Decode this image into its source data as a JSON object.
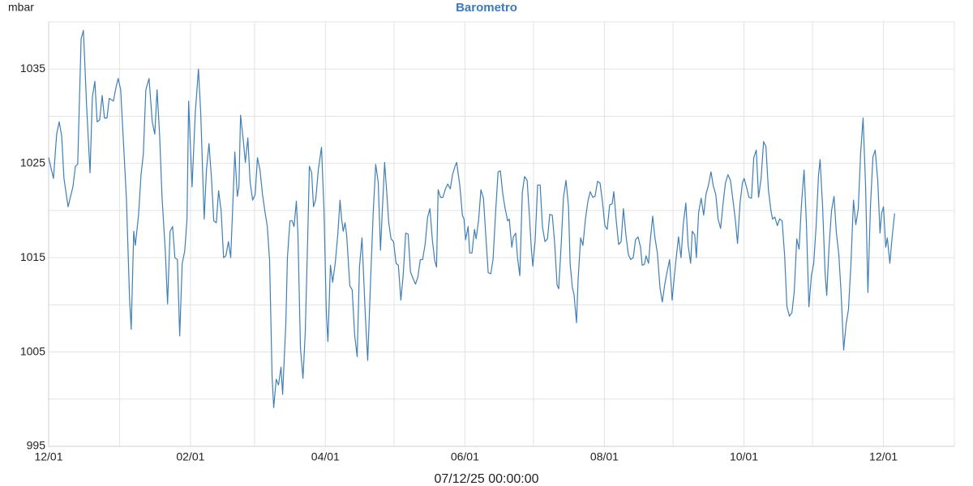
{
  "chart_data": {
    "type": "line",
    "title": "Barometro",
    "y_label": "mbar",
    "x_label": "07/12/25 00:00:00",
    "xlim": [
      0,
      396
    ],
    "ylim": [
      995,
      1040
    ],
    "xticks": [
      {
        "value": 0,
        "label": "12/01"
      },
      {
        "value": 62,
        "label": "02/01"
      },
      {
        "value": 121,
        "label": "04/01"
      },
      {
        "value": 182,
        "label": "06/01"
      },
      {
        "value": 243,
        "label": "08/01"
      },
      {
        "value": 304,
        "label": "10/01"
      },
      {
        "value": 365,
        "label": "12/01"
      }
    ],
    "x_minor_ticks": [
      31,
      90,
      151,
      212,
      273,
      334,
      396
    ],
    "yticks": [
      995,
      1005,
      1015,
      1025,
      1035
    ],
    "y_minor_ticks": [
      1000,
      1010,
      1020,
      1030,
      1040
    ],
    "grid": true,
    "x": [
      0.0,
      2.1,
      3.5,
      4.6,
      5.7,
      6.7,
      8.5,
      10.6,
      11.7,
      12.7,
      14.2,
      15.2,
      16.6,
      18.1,
      19.1,
      20.2,
      21.2,
      22.3,
      23.4,
      24.4,
      25.5,
      26.5,
      28.3,
      29.4,
      30.4,
      31.5,
      32.6,
      34.0,
      35.4,
      36.1,
      37.2,
      37.9,
      39.3,
      40.4,
      41.4,
      42.5,
      43.9,
      45.3,
      46.4,
      47.4,
      48.5,
      49.6,
      51.0,
      52.0,
      53.1,
      54.2,
      55.2,
      56.3,
      57.3,
      58.4,
      59.5,
      60.5,
      61.2,
      62.7,
      64.1,
      65.5,
      66.5,
      68.0,
      69.0,
      70.1,
      71.2,
      72.2,
      73.3,
      74.3,
      75.4,
      76.5,
      77.5,
      78.6,
      79.6,
      80.7,
      81.4,
      82.5,
      83.2,
      83.9,
      85.0,
      86.0,
      87.1,
      88.1,
      89.2,
      90.3,
      91.3,
      92.4,
      93.5,
      94.5,
      95.6,
      96.6,
      97.7,
      98.4,
      99.5,
      100.5,
      101.6,
      102.3,
      103.7,
      104.4,
      105.5,
      106.5,
      107.3,
      108.3,
      109.0,
      110.1,
      111.2,
      112.2,
      113.3,
      114.0,
      115.0,
      115.8,
      116.8,
      117.9,
      119.3,
      120.4,
      121.4,
      122.1,
      123.2,
      124.2,
      125.3,
      126.4,
      127.4,
      128.1,
      128.8,
      129.6,
      130.3,
      131.7,
      132.7,
      133.8,
      134.9,
      135.9,
      137.0,
      138.4,
      139.5,
      140.9,
      141.9,
      143.0,
      144.1,
      145.1,
      145.8,
      146.9,
      148.0,
      148.7,
      149.7,
      150.8,
      151.9,
      152.9,
      154.0,
      155.0,
      156.1,
      157.2,
      158.2,
      159.3,
      160.4,
      161.4,
      162.5,
      163.5,
      164.6,
      165.7,
      166.7,
      167.8,
      168.8,
      169.6,
      170.3,
      171.3,
      172.4,
      173.5,
      174.5,
      175.6,
      176.6,
      177.7,
      178.4,
      179.8,
      180.9,
      181.6,
      182.3,
      183.4,
      184.1,
      185.1,
      186.2,
      186.9,
      188.0,
      189.0,
      190.1,
      191.2,
      192.2,
      193.3,
      194.3,
      195.4,
      196.5,
      197.5,
      198.6,
      199.6,
      200.7,
      201.4,
      202.5,
      203.2,
      204.2,
      205.0,
      206.0,
      207.1,
      208.1,
      209.2,
      210.3,
      211.0,
      211.7,
      212.7,
      213.8,
      214.9,
      215.9,
      217.0,
      218.1,
      219.1,
      220.2,
      221.2,
      222.3,
      223.0,
      224.1,
      225.1,
      226.2,
      227.3,
      228.0,
      229.0,
      229.7,
      230.8,
      231.5,
      232.6,
      233.6,
      234.7,
      235.8,
      236.8,
      237.9,
      238.9,
      240.0,
      241.1,
      242.1,
      243.2,
      244.2,
      245.3,
      246.4,
      247.1,
      248.1,
      249.2,
      250.3,
      251.3,
      252.4,
      253.5,
      254.5,
      255.6,
      256.6,
      257.7,
      258.8,
      259.5,
      260.5,
      261.2,
      262.3,
      263.0,
      264.1,
      265.1,
      266.2,
      267.3,
      268.3,
      269.4,
      270.4,
      271.5,
      272.6,
      273.6,
      274.3,
      275.4,
      276.5,
      277.5,
      278.6,
      279.6,
      280.7,
      281.4,
      282.5,
      283.2,
      284.2,
      285.3,
      286.4,
      287.4,
      288.5,
      289.6,
      290.6,
      291.7,
      292.7,
      293.8,
      294.9,
      295.9,
      297.0,
      298.1,
      299.1,
      300.2,
      301.2,
      302.3,
      303.4,
      304.1,
      305.1,
      306.2,
      307.3,
      308.3,
      309.4,
      310.4,
      311.5,
      312.6,
      313.6,
      314.7,
      315.8,
      316.5,
      317.5,
      318.6,
      319.6,
      320.7,
      321.8,
      322.8,
      323.9,
      325.0,
      326.0,
      327.1,
      328.1,
      329.2,
      330.3,
      331.3,
      332.4,
      333.5,
      334.5,
      335.6,
      336.6,
      337.3,
      338.4,
      339.5,
      340.2,
      341.2,
      342.3,
      343.4,
      344.4,
      345.5,
      346.5,
      347.6,
      348.7,
      349.7,
      350.8,
      351.9,
      352.9,
      354.0,
      355.0,
      356.1,
      357.2,
      358.2,
      359.3,
      360.4,
      361.4,
      362.5,
      363.5,
      364.2,
      365.0,
      366.0,
      366.7,
      367.8,
      368.8,
      369.9
    ],
    "series": [
      {
        "color": "#3f7fb8",
        "values": [
          1025.6,
          1023.4,
          1028.1,
          1029.4,
          1027.9,
          1023.4,
          1020.4,
          1022.5,
          1024.7,
          1024.9,
          1038.2,
          1039.1,
          1031.1,
          1024.0,
          1032.0,
          1033.7,
          1029.4,
          1029.6,
          1032.2,
          1029.8,
          1029.8,
          1031.9,
          1031.6,
          1033.0,
          1034.0,
          1032.8,
          1027.7,
          1021.3,
          1010.5,
          1007.4,
          1017.8,
          1016.3,
          1019.5,
          1023.8,
          1026.0,
          1032.8,
          1034.0,
          1029.4,
          1028.1,
          1032.8,
          1028.1,
          1021.3,
          1015.7,
          1010.1,
          1017.8,
          1018.3,
          1015.0,
          1014.8,
          1006.7,
          1014.4,
          1015.7,
          1019.1,
          1031.6,
          1022.5,
          1030.3,
          1035.0,
          1030.3,
          1019.1,
          1024.3,
          1027.1,
          1023.4,
          1018.9,
          1018.7,
          1022.1,
          1020.0,
          1015.0,
          1015.2,
          1016.7,
          1015.0,
          1021.7,
          1026.2,
          1021.5,
          1022.5,
          1030.1,
          1027.7,
          1025.1,
          1027.7,
          1023.0,
          1021.1,
          1021.7,
          1025.6,
          1024.3,
          1021.7,
          1020.0,
          1018.3,
          1014.7,
          1002.4,
          999.1,
          1002.1,
          1001.5,
          1003.4,
          1000.5,
          1008.0,
          1015.0,
          1018.9,
          1018.9,
          1018.3,
          1021.0,
          1017.4,
          1005.4,
          1002.2,
          1007.1,
          1017.4,
          1024.7,
          1024.0,
          1020.4,
          1021.2,
          1024.3,
          1026.7,
          1020.0,
          1009.2,
          1006.1,
          1014.2,
          1012.4,
          1014.4,
          1017.4,
          1021.1,
          1019.1,
          1017.8,
          1018.7,
          1017.4,
          1012.0,
          1011.6,
          1006.8,
          1004.5,
          1014.0,
          1017.1,
          1009.2,
          1004.1,
          1013.5,
          1019.7,
          1024.9,
          1023.0,
          1015.8,
          1019.5,
          1025.1,
          1021.3,
          1018.7,
          1017.0,
          1016.7,
          1014.4,
          1014.2,
          1010.5,
          1013.1,
          1017.6,
          1017.5,
          1013.5,
          1012.8,
          1012.2,
          1012.9,
          1014.8,
          1014.8,
          1016.4,
          1019.3,
          1020.2,
          1016.8,
          1014.7,
          1014.0,
          1022.2,
          1021.4,
          1021.4,
          1022.3,
          1022.8,
          1022.3,
          1023.8,
          1024.7,
          1025.1,
          1022.6,
          1019.5,
          1019.1,
          1016.9,
          1018.3,
          1015.5,
          1015.5,
          1018.0,
          1017.0,
          1019.0,
          1022.2,
          1021.3,
          1017.1,
          1013.4,
          1013.3,
          1014.8,
          1019.7,
          1024.1,
          1024.2,
          1021.7,
          1020.2,
          1018.9,
          1019.1,
          1016.1,
          1017.2,
          1017.6,
          1015.0,
          1013.1,
          1021.9,
          1023.6,
          1023.2,
          1019.1,
          1016.1,
          1014.1,
          1016.8,
          1022.7,
          1022.7,
          1018.3,
          1016.7,
          1017.0,
          1019.6,
          1019.5,
          1016.7,
          1012.1,
          1011.7,
          1016.4,
          1021.4,
          1023.2,
          1020.4,
          1014.4,
          1011.8,
          1011.1,
          1008.1,
          1012.7,
          1017.1,
          1016.3,
          1019.1,
          1021.0,
          1022.0,
          1021.4,
          1021.5,
          1023.1,
          1022.9,
          1021.0,
          1018.4,
          1018.0,
          1020.6,
          1020.7,
          1022.0,
          1019.1,
          1016.4,
          1016.7,
          1020.2,
          1017.4,
          1015.3,
          1014.8,
          1015.0,
          1016.9,
          1017.2,
          1016.1,
          1014.2,
          1014.3,
          1015.2,
          1014.4,
          1016.7,
          1019.4,
          1017.1,
          1015.4,
          1011.8,
          1010.3,
          1012.2,
          1013.5,
          1014.8,
          1010.5,
          1013.1,
          1014.8,
          1017.2,
          1015.0,
          1018.6,
          1020.8,
          1016.3,
          1014.4,
          1017.8,
          1017.4,
          1015.0,
          1019.8,
          1021.3,
          1019.5,
          1021.7,
          1022.7,
          1024.1,
          1022.6,
          1021.7,
          1019.1,
          1018.1,
          1020.8,
          1022.9,
          1023.8,
          1023.2,
          1021.3,
          1019.1,
          1016.5,
          1020.8,
          1023.0,
          1023.4,
          1022.5,
          1021.4,
          1021.3,
          1025.6,
          1026.4,
          1021.4,
          1023.4,
          1027.3,
          1026.8,
          1022.2,
          1020.0,
          1019.1,
          1019.3,
          1018.4,
          1019.1,
          1018.9,
          1015.2,
          1009.8,
          1008.8,
          1009.2,
          1011.4,
          1017.0,
          1015.9,
          1020.8,
          1024.3,
          1018.7,
          1009.8,
          1013.1,
          1014.4,
          1018.5,
          1023.7,
          1025.4,
          1020.4,
          1013.3,
          1011.0,
          1016.1,
          1020.0,
          1021.5,
          1017.7,
          1015.3,
          1011.2,
          1005.2,
          1008.0,
          1009.5,
          1014.4,
          1021.1,
          1018.5,
          1020.2,
          1026.0,
          1029.8,
          1022.5,
          1011.3,
          1020.3,
          1025.7,
          1026.4,
          1023.2,
          1017.6,
          1019.7,
          1020.4,
          1016.1,
          1017.1,
          1014.4,
          1017.2,
          1019.7
        ]
      }
    ]
  }
}
